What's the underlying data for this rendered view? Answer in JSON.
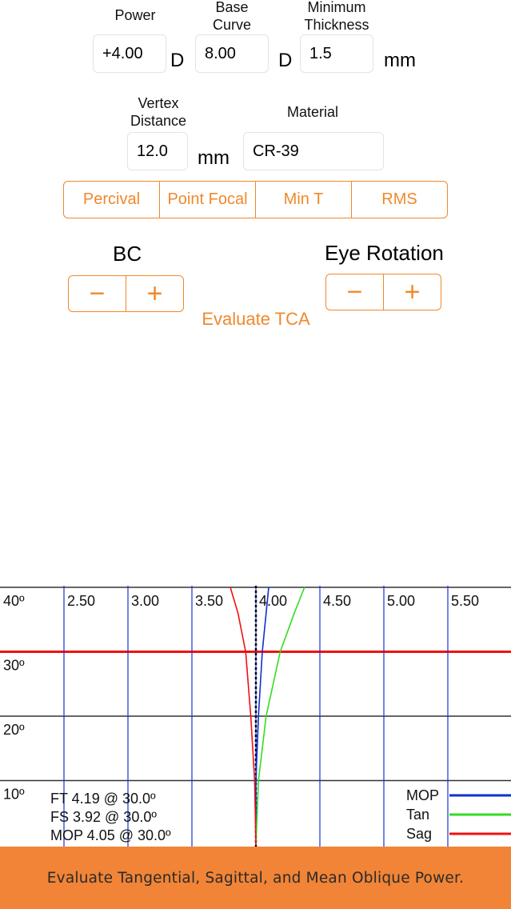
{
  "fields": {
    "power": {
      "label": "Power",
      "value": "+4.00",
      "unit": "D"
    },
    "base_curve": {
      "label_line1": "Base",
      "label_line2": "Curve",
      "value": "8.00",
      "unit": "D"
    },
    "min_thickness": {
      "label_line1": "Minimum",
      "label_line2": "Thickness",
      "value": "1.5",
      "unit": "mm"
    },
    "vertex_distance": {
      "label_line1": "Vertex",
      "label_line2": "Distance",
      "value": "12.0",
      "unit": "mm"
    },
    "material": {
      "label": "Material",
      "value": "CR-39"
    }
  },
  "segments": [
    "Percival",
    "Point Focal",
    "Min T",
    "RMS"
  ],
  "bc": {
    "label": "BC",
    "minus": "−",
    "plus": "+"
  },
  "eye_rotation": {
    "label": "Eye Rotation",
    "minus": "−",
    "plus": "+"
  },
  "evaluate_button": "Evaluate TCA",
  "colors": {
    "accent": "#F0892B",
    "footer_bg": "#F18436",
    "mop": "#1030d0",
    "tan": "#33dd22",
    "sag": "#ee1111"
  },
  "chart_data": {
    "type": "line",
    "x_ticks": [
      "2.50",
      "3.00",
      "3.50",
      "4.00",
      "4.50",
      "5.00",
      "5.50"
    ],
    "y_ticks": [
      "40º",
      "30º",
      "20º",
      "10º"
    ],
    "xlim": [
      2.0,
      6.0
    ],
    "ylim": [
      0,
      40
    ],
    "reference_power": 4.0,
    "highlight_angle": 30,
    "series": [
      {
        "name": "MOP",
        "color": "#1030d0",
        "points": [
          [
            4.0,
            0
          ],
          [
            4.0,
            10
          ],
          [
            4.02,
            20
          ],
          [
            4.05,
            30
          ],
          [
            4.08,
            36
          ],
          [
            4.1,
            40
          ]
        ]
      },
      {
        "name": "Tan",
        "color": "#33dd22",
        "points": [
          [
            4.0,
            0
          ],
          [
            4.02,
            10
          ],
          [
            4.08,
            20
          ],
          [
            4.19,
            30
          ],
          [
            4.3,
            36
          ],
          [
            4.38,
            40
          ]
        ]
      },
      {
        "name": "Sag",
        "color": "#ee1111",
        "points": [
          [
            4.0,
            0
          ],
          [
            3.99,
            10
          ],
          [
            3.96,
            20
          ],
          [
            3.92,
            30
          ],
          [
            3.86,
            36
          ],
          [
            3.8,
            40
          ]
        ]
      }
    ],
    "annotations": [
      "FT 4.19 @ 30.0º",
      "FS 3.92 @ 30.0º",
      "MOP 4.05 @ 30.0º"
    ]
  },
  "footer_text": "Evaluate Tangential, Sagittal, and Mean Oblique Power."
}
